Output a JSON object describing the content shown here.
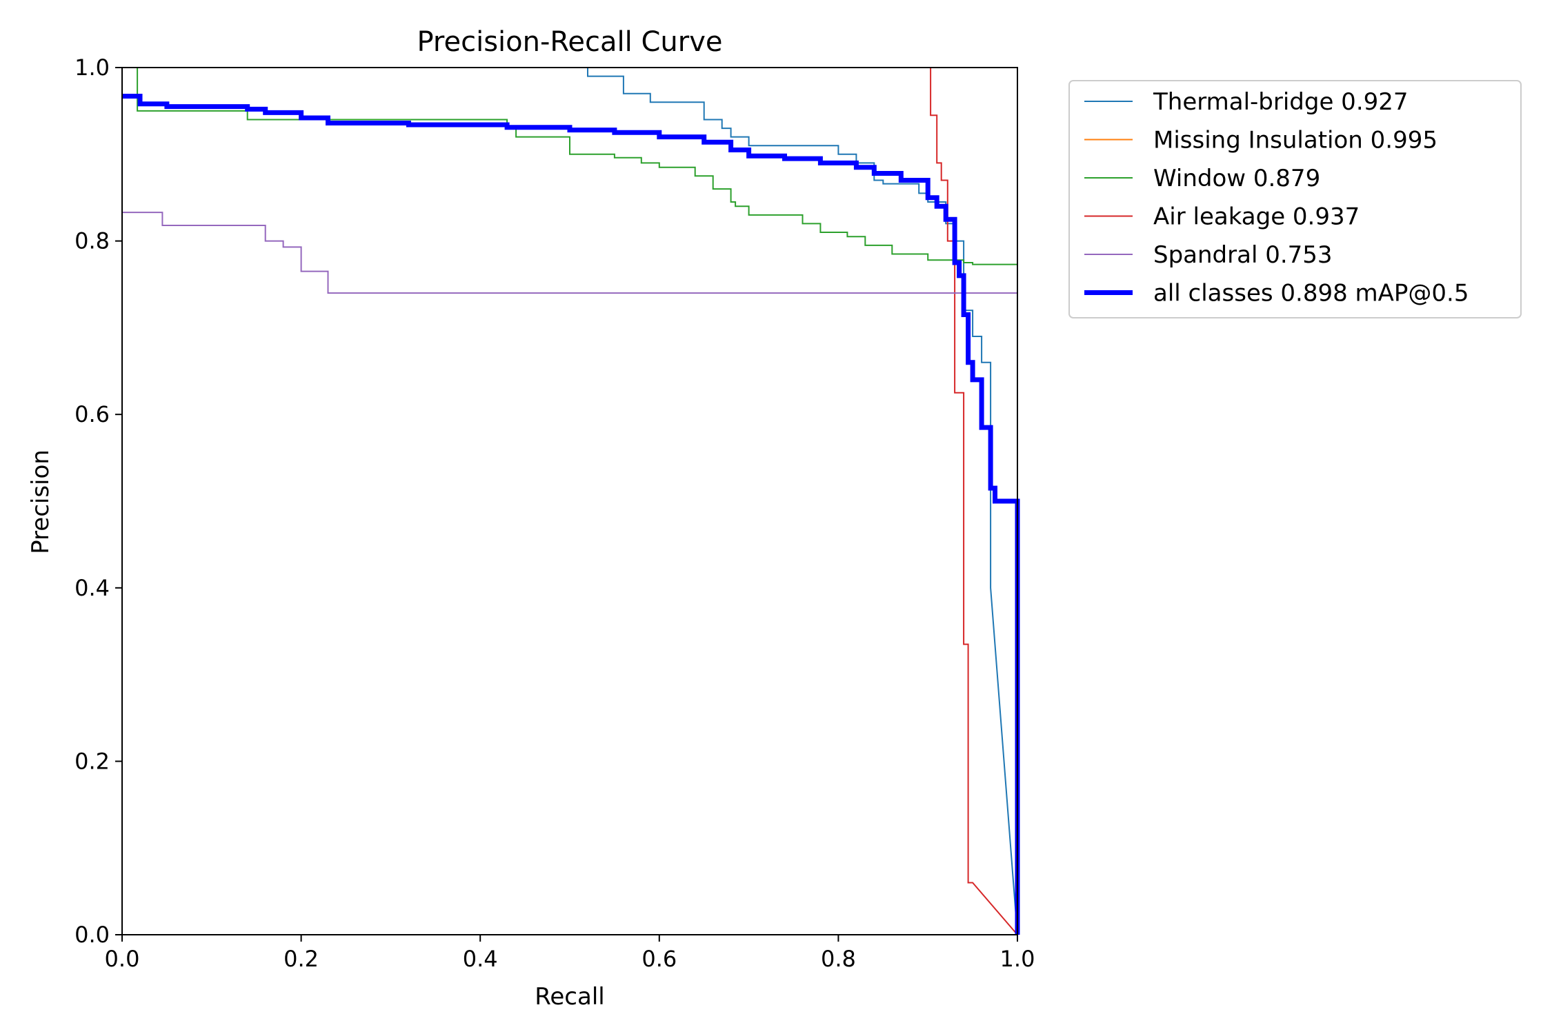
{
  "chart_data": {
    "type": "line",
    "title": "Precision-Recall Curve",
    "xlabel": "Recall",
    "ylabel": "Precision",
    "xlim": [
      0,
      1
    ],
    "ylim": [
      0,
      1
    ],
    "xticks": [
      "0.0",
      "0.2",
      "0.4",
      "0.6",
      "0.8",
      "1.0"
    ],
    "yticks": [
      "0.0",
      "0.2",
      "0.4",
      "0.6",
      "0.8",
      "1.0"
    ],
    "grid": false,
    "legend_position": "outside-top-right",
    "series": [
      {
        "name": "Thermal-bridge 0.927",
        "color": "#1f77b4",
        "width": "thin",
        "x": [
          0.52,
          0.52,
          0.53,
          0.56,
          0.56,
          0.59,
          0.59,
          0.65,
          0.65,
          0.67,
          0.67,
          0.68,
          0.68,
          0.7,
          0.7,
          0.72,
          0.72,
          0.74,
          0.74,
          0.8,
          0.8,
          0.82,
          0.82,
          0.84,
          0.84,
          0.85,
          0.85,
          0.89,
          0.89,
          0.9,
          0.9,
          0.92,
          0.92,
          0.93,
          0.93,
          0.94,
          0.94,
          0.95,
          0.95,
          0.96,
          0.96,
          0.97,
          0.97,
          1.0
        ],
        "y": [
          1.0,
          0.99,
          0.99,
          0.99,
          0.97,
          0.97,
          0.96,
          0.96,
          0.94,
          0.94,
          0.93,
          0.93,
          0.92,
          0.92,
          0.91,
          0.91,
          0.91,
          0.91,
          0.91,
          0.91,
          0.9,
          0.9,
          0.89,
          0.89,
          0.87,
          0.87,
          0.866,
          0.866,
          0.855,
          0.855,
          0.845,
          0.845,
          0.82,
          0.82,
          0.8,
          0.8,
          0.72,
          0.72,
          0.69,
          0.69,
          0.66,
          0.66,
          0.4,
          0.0
        ]
      },
      {
        "name": "Missing Insulation 0.995",
        "color": "#ff7f0e",
        "width": "thin",
        "x": [
          1.0,
          1.0
        ],
        "y": [
          1.0,
          0.735
        ]
      },
      {
        "name": "Window 0.879",
        "color": "#2ca02c",
        "width": "thin",
        "x": [
          0.017,
          0.017,
          0.02,
          0.14,
          0.14,
          0.43,
          0.43,
          0.44,
          0.44,
          0.5,
          0.5,
          0.55,
          0.55,
          0.58,
          0.58,
          0.6,
          0.6,
          0.64,
          0.64,
          0.66,
          0.66,
          0.68,
          0.68,
          0.685,
          0.685,
          0.7,
          0.7,
          0.76,
          0.76,
          0.78,
          0.78,
          0.81,
          0.81,
          0.83,
          0.83,
          0.86,
          0.86,
          0.9,
          0.9,
          0.94,
          0.94,
          0.95,
          0.95,
          1.0,
          1.0
        ],
        "y": [
          1.0,
          0.95,
          0.95,
          0.95,
          0.94,
          0.94,
          0.93,
          0.93,
          0.92,
          0.92,
          0.9,
          0.9,
          0.896,
          0.896,
          0.89,
          0.89,
          0.885,
          0.885,
          0.875,
          0.875,
          0.86,
          0.86,
          0.845,
          0.845,
          0.84,
          0.84,
          0.83,
          0.83,
          0.82,
          0.82,
          0.81,
          0.81,
          0.805,
          0.805,
          0.795,
          0.795,
          0.785,
          0.785,
          0.778,
          0.778,
          0.775,
          0.775,
          0.773,
          0.773,
          0.735
        ]
      },
      {
        "name": "Air leakage 0.937",
        "color": "#d62728",
        "width": "thin",
        "x": [
          0.903,
          0.903,
          0.91,
          0.91,
          0.915,
          0.915,
          0.922,
          0.922,
          0.93,
          0.93,
          0.94,
          0.94,
          0.945,
          0.945,
          0.95,
          0.95,
          1.0
        ],
        "y": [
          1.0,
          0.945,
          0.945,
          0.89,
          0.89,
          0.87,
          0.87,
          0.8,
          0.8,
          0.625,
          0.625,
          0.335,
          0.335,
          0.06,
          0.06,
          0.06,
          0.0
        ]
      },
      {
        "name": "Spandral 0.753",
        "color": "#9467bd",
        "width": "thin",
        "x": [
          0.0,
          0.045,
          0.045,
          0.16,
          0.16,
          0.18,
          0.18,
          0.2,
          0.2,
          0.23,
          0.23,
          1.0,
          1.0
        ],
        "y": [
          0.833,
          0.833,
          0.818,
          0.818,
          0.8,
          0.8,
          0.793,
          0.793,
          0.765,
          0.765,
          0.74,
          0.74,
          0.0
        ]
      },
      {
        "name": "all classes 0.898 mAP@0.5",
        "color": "#0000ff",
        "width": "thick",
        "x": [
          0.0,
          0.02,
          0.02,
          0.05,
          0.05,
          0.14,
          0.14,
          0.16,
          0.16,
          0.2,
          0.2,
          0.23,
          0.23,
          0.32,
          0.32,
          0.43,
          0.43,
          0.5,
          0.5,
          0.55,
          0.55,
          0.6,
          0.6,
          0.65,
          0.65,
          0.68,
          0.68,
          0.7,
          0.7,
          0.74,
          0.74,
          0.78,
          0.78,
          0.82,
          0.82,
          0.84,
          0.84,
          0.87,
          0.87,
          0.9,
          0.9,
          0.91,
          0.91,
          0.92,
          0.92,
          0.93,
          0.93,
          0.935,
          0.935,
          0.94,
          0.94,
          0.945,
          0.945,
          0.95,
          0.95,
          0.96,
          0.96,
          0.97,
          0.97,
          0.975,
          0.975,
          1.0,
          1.0
        ],
        "y": [
          0.967,
          0.967,
          0.958,
          0.958,
          0.955,
          0.955,
          0.952,
          0.952,
          0.948,
          0.948,
          0.942,
          0.942,
          0.936,
          0.936,
          0.934,
          0.934,
          0.931,
          0.931,
          0.928,
          0.928,
          0.925,
          0.925,
          0.92,
          0.92,
          0.914,
          0.914,
          0.905,
          0.905,
          0.898,
          0.898,
          0.895,
          0.895,
          0.89,
          0.89,
          0.885,
          0.885,
          0.878,
          0.878,
          0.87,
          0.87,
          0.85,
          0.85,
          0.84,
          0.84,
          0.825,
          0.825,
          0.775,
          0.775,
          0.76,
          0.76,
          0.715,
          0.715,
          0.66,
          0.66,
          0.64,
          0.64,
          0.585,
          0.585,
          0.515,
          0.515,
          0.5,
          0.5,
          0.0
        ]
      }
    ]
  }
}
